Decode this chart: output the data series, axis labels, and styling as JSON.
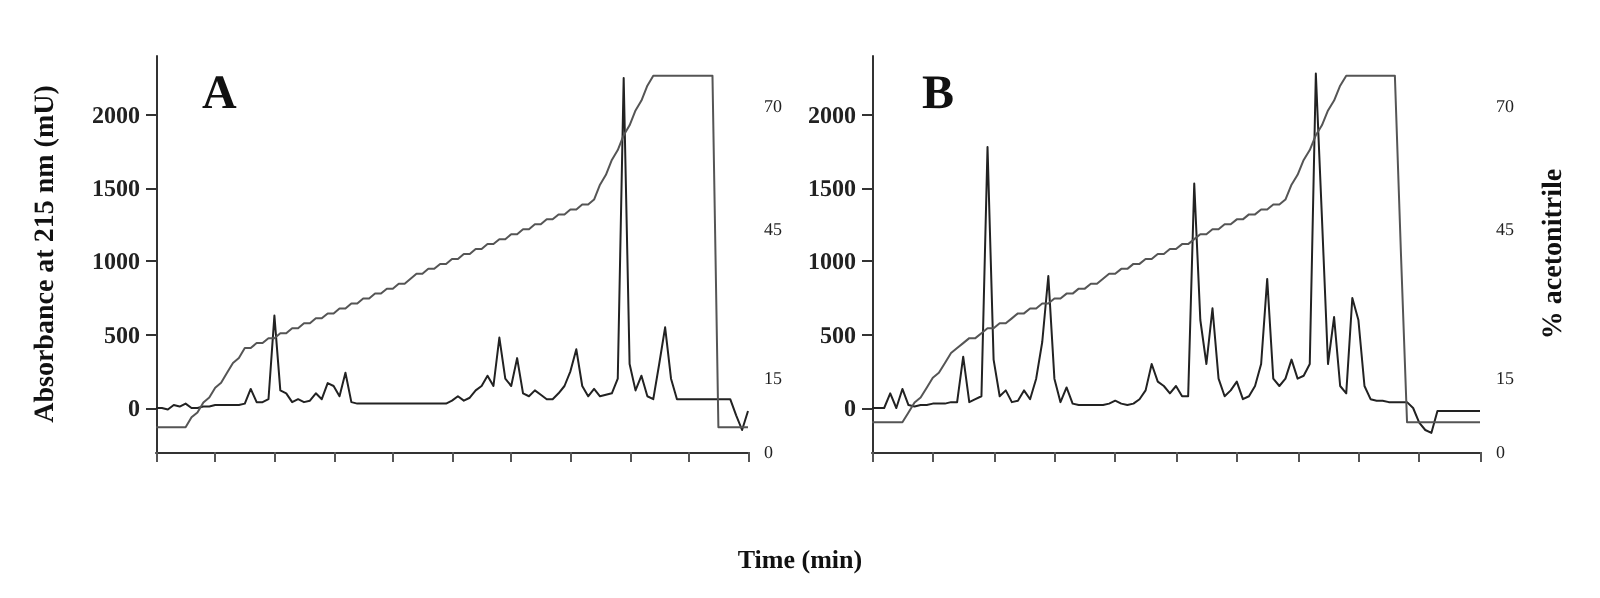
{
  "chart_data": [
    {
      "type": "line",
      "title": "A",
      "ylabel": "Absorbance at 215 nm (mU)",
      "xlabel": "Time (min)",
      "categories": [
        null,
        null,
        null,
        null,
        null,
        null,
        null,
        null,
        null,
        null,
        null,
        null,
        null,
        null,
        null,
        null,
        null,
        null,
        null,
        null,
        null,
        null,
        null,
        null,
        null,
        null,
        null,
        null,
        null,
        null,
        null,
        null,
        null,
        null,
        null,
        null,
        null,
        null,
        null,
        null,
        null,
        null,
        null,
        null,
        null,
        null,
        null,
        null,
        null,
        null,
        null,
        null,
        null,
        null,
        null,
        null,
        null,
        null,
        null,
        null,
        null,
        null,
        null,
        null,
        null,
        null,
        null,
        null,
        null,
        null,
        null,
        null,
        null,
        null,
        null,
        null,
        null,
        null,
        null,
        null,
        null,
        null,
        null,
        null,
        null,
        null,
        null,
        null,
        null,
        null,
        null,
        null,
        null,
        null,
        null,
        null,
        null,
        null,
        null,
        null,
        null
      ],
      "series": [
        {
          "color": "#222222",
          "values": [
            0,
            0,
            -10,
            20,
            10,
            30,
            0,
            0,
            10,
            10,
            20,
            20,
            20,
            20,
            20,
            30,
            130,
            40,
            40,
            60,
            630,
            120,
            100,
            40,
            60,
            40,
            50,
            100,
            60,
            170,
            150,
            80,
            240,
            40,
            30,
            30,
            30,
            30,
            30,
            30,
            30,
            30,
            30,
            30,
            30,
            30,
            30,
            30,
            30,
            30,
            50,
            80,
            50,
            70,
            120,
            150,
            220,
            150,
            480,
            200,
            150,
            340,
            100,
            80,
            120,
            90,
            60,
            60,
            100,
            150,
            250,
            400,
            150,
            80,
            130,
            80,
            90,
            100,
            200,
            2250,
            300,
            120,
            220,
            80,
            60,
            300,
            550,
            200,
            60,
            60,
            60,
            60,
            60,
            60,
            60,
            60,
            60,
            60,
            -50,
            -150,
            -20
          ]
        },
        {
          "color": "#555555",
          "axis": "y2",
          "values": [
            5,
            5,
            5,
            5,
            5,
            5,
            7,
            8,
            10,
            11,
            13,
            14,
            16,
            18,
            19,
            21,
            21,
            22,
            22,
            23,
            23,
            24,
            24,
            25,
            25,
            26,
            26,
            27,
            27,
            28,
            28,
            29,
            29,
            30,
            30,
            31,
            31,
            32,
            32,
            33,
            33,
            34,
            34,
            35,
            36,
            36,
            37,
            37,
            38,
            38,
            39,
            39,
            40,
            40,
            41,
            41,
            42,
            42,
            43,
            43,
            44,
            44,
            45,
            45,
            46,
            46,
            47,
            47,
            48,
            48,
            49,
            49,
            50,
            50,
            51,
            54,
            56,
            59,
            61,
            64,
            66,
            69,
            71,
            74,
            76,
            76,
            76,
            76,
            76,
            76,
            76,
            76,
            76,
            76,
            76,
            5,
            5,
            5,
            5,
            5,
            5
          ]
        }
      ],
      "ylim": [
        -300,
        2400
      ],
      "yticks": [
        0,
        500,
        1000,
        1500,
        2000
      ],
      "y2lim": [
        0,
        80
      ],
      "y2ticks": [
        0,
        15,
        45,
        70
      ],
      "grid": false,
      "marker": "none",
      "line_style": "solid"
    },
    {
      "type": "line",
      "title": "B",
      "y2label": "% acetonitrile",
      "categories": [
        null,
        null,
        null,
        null,
        null,
        null,
        null,
        null,
        null,
        null,
        null,
        null,
        null,
        null,
        null,
        null,
        null,
        null,
        null,
        null,
        null,
        null,
        null,
        null,
        null,
        null,
        null,
        null,
        null,
        null,
        null,
        null,
        null,
        null,
        null,
        null,
        null,
        null,
        null,
        null,
        null,
        null,
        null,
        null,
        null,
        null,
        null,
        null,
        null,
        null,
        null,
        null,
        null,
        null,
        null,
        null,
        null,
        null,
        null,
        null,
        null,
        null,
        null,
        null,
        null,
        null,
        null,
        null,
        null,
        null,
        null,
        null,
        null,
        null,
        null,
        null,
        null,
        null,
        null,
        null,
        null,
        null,
        null,
        null,
        null,
        null,
        null,
        null,
        null,
        null,
        null,
        null,
        null,
        null,
        null,
        null,
        null,
        null,
        null,
        null,
        null
      ],
      "series": [
        {
          "color": "#222222",
          "values": [
            0,
            0,
            0,
            100,
            0,
            130,
            20,
            10,
            20,
            20,
            30,
            30,
            30,
            40,
            40,
            350,
            40,
            60,
            80,
            1780,
            330,
            80,
            120,
            40,
            50,
            120,
            60,
            200,
            450,
            900,
            200,
            40,
            140,
            30,
            20,
            20,
            20,
            20,
            20,
            30,
            50,
            30,
            20,
            30,
            60,
            120,
            300,
            180,
            150,
            100,
            150,
            80,
            80,
            1530,
            600,
            300,
            680,
            200,
            80,
            120,
            180,
            60,
            80,
            150,
            300,
            880,
            200,
            150,
            200,
            330,
            200,
            220,
            300,
            2280,
            1300,
            300,
            620,
            150,
            100,
            750,
            600,
            150,
            60,
            50,
            50,
            40,
            40,
            40,
            40,
            0,
            -100,
            -150,
            -170,
            -20,
            -20,
            -20,
            -20,
            -20,
            -20,
            -20,
            -20
          ]
        },
        {
          "color": "#555555",
          "axis": "y2",
          "values": [
            6,
            6,
            6,
            6,
            6,
            6,
            8,
            10,
            11,
            13,
            15,
            16,
            18,
            20,
            21,
            22,
            23,
            23,
            24,
            25,
            25,
            26,
            26,
            27,
            28,
            28,
            29,
            29,
            30,
            30,
            31,
            31,
            32,
            32,
            33,
            33,
            34,
            34,
            35,
            36,
            36,
            37,
            37,
            38,
            38,
            39,
            39,
            40,
            40,
            41,
            41,
            42,
            42,
            43,
            44,
            44,
            45,
            45,
            46,
            46,
            47,
            47,
            48,
            48,
            49,
            49,
            50,
            50,
            51,
            54,
            56,
            59,
            61,
            64,
            66,
            69,
            71,
            74,
            76,
            76,
            76,
            76,
            76,
            76,
            76,
            76,
            76,
            40,
            6,
            6,
            6,
            6,
            6,
            6,
            6,
            6,
            6,
            6,
            6,
            6,
            6
          ]
        }
      ],
      "ylim": [
        -300,
        2400
      ],
      "yticks": [
        0,
        500,
        1000,
        1500,
        2000
      ],
      "y2lim": [
        0,
        80
      ],
      "y2ticks": [
        0,
        15,
        45,
        70
      ],
      "grid": false,
      "marker": "none",
      "line_style": "solid"
    }
  ]
}
